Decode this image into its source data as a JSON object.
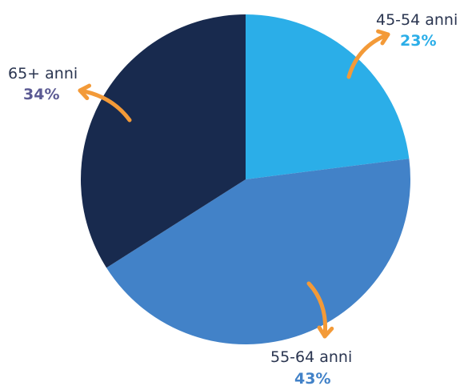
{
  "chart_data": {
    "type": "pie",
    "categories": [
      "45-54 anni",
      "55-64 anni",
      "65+ anni"
    ],
    "values": [
      23,
      43,
      34
    ],
    "value_labels": [
      "23%",
      "43%",
      "34%"
    ],
    "title": "",
    "legend": "none",
    "colors": [
      "#2baee8",
      "#4282c8",
      "#182a4e"
    ],
    "label_colors": [
      "#2baee8",
      "#4282c8",
      "#5b5a93"
    ],
    "arrow_color": "#f39a38"
  }
}
